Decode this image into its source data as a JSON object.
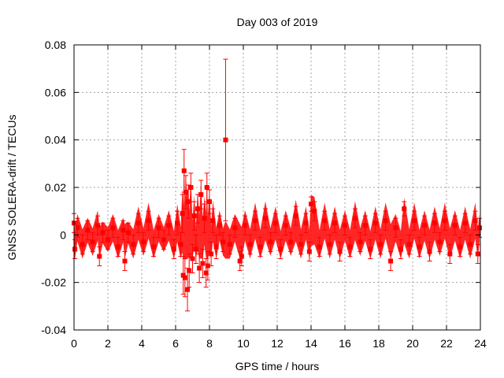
{
  "chart_data": {
    "type": "scatter",
    "title": "Day 003 of 2019",
    "xlabel": "GPS time / hours",
    "ylabel": "GNSS SOLERA-drift / TECUs",
    "xlim": [
      0,
      24
    ],
    "ylim": [
      -0.04,
      0.08
    ],
    "x_ticks": [
      0,
      2,
      4,
      6,
      8,
      10,
      12,
      14,
      16,
      18,
      20,
      22,
      24
    ],
    "x_tick_labels": [
      "0",
      "2",
      "4",
      "6",
      "8",
      "10",
      "12",
      "14",
      "16",
      "18",
      "20",
      "22",
      "24"
    ],
    "y_ticks": [
      -0.04,
      -0.02,
      0,
      0.02,
      0.04,
      0.06,
      0.08
    ],
    "y_tick_labels": [
      "-0.04",
      "-0.02",
      "0",
      "0.02",
      "0.04",
      "0.06",
      "0.08"
    ],
    "grid": true,
    "marker": "square",
    "error_bars": true,
    "color": "#ff0000",
    "series": [
      {
        "x": [
          0.0,
          0.05,
          0.2,
          0.5,
          0.8,
          1.1,
          1.4,
          1.5,
          1.7,
          2.0,
          2.3,
          2.6,
          2.9,
          3.0,
          3.2,
          3.5,
          3.8,
          4.1,
          4.4,
          4.7,
          5.0,
          5.3,
          5.6,
          5.9,
          6.1,
          6.3,
          6.4,
          6.45,
          6.5,
          6.55,
          6.6,
          6.7,
          6.75,
          6.8,
          6.9,
          7.0,
          7.1,
          7.2,
          7.3,
          7.4,
          7.5,
          7.6,
          7.7,
          7.8,
          7.85,
          7.9,
          8.0,
          8.1,
          8.2,
          8.4,
          8.6,
          8.8,
          8.95,
          9.2,
          9.5,
          9.8,
          9.9,
          10.1,
          10.4,
          10.7,
          11.0,
          11.3,
          11.6,
          11.9,
          12.2,
          12.5,
          12.8,
          13.1,
          13.4,
          13.7,
          13.9,
          14.0,
          14.2,
          14.5,
          14.8,
          15.1,
          15.4,
          15.7,
          16.0,
          16.3,
          16.6,
          16.9,
          17.2,
          17.5,
          17.8,
          18.1,
          18.4,
          18.7,
          19.0,
          19.3,
          19.5,
          19.8,
          20.1,
          20.4,
          20.7,
          21.0,
          21.3,
          21.6,
          21.9,
          22.2,
          22.5,
          22.8,
          23.1,
          23.4,
          23.7,
          23.85,
          23.95
        ],
        "y": [
          0.005,
          -0.006,
          0.003,
          -0.004,
          0.002,
          -0.003,
          0.004,
          -0.009,
          0.001,
          -0.002,
          0.003,
          -0.005,
          0.002,
          -0.011,
          0.001,
          -0.004,
          0.005,
          -0.003,
          0.006,
          -0.005,
          0.003,
          -0.002,
          0.004,
          -0.006,
          0.005,
          -0.004,
          0.009,
          -0.017,
          0.027,
          -0.018,
          0.018,
          -0.023,
          0.014,
          -0.015,
          0.02,
          -0.01,
          0.008,
          -0.006,
          0.011,
          -0.014,
          0.017,
          -0.012,
          0.007,
          -0.016,
          0.02,
          -0.013,
          0.014,
          -0.008,
          0.006,
          -0.005,
          0.004,
          -0.003,
          0.04,
          -0.004,
          0.003,
          -0.011,
          -0.009,
          0.004,
          -0.004,
          0.006,
          -0.005,
          0.007,
          -0.003,
          0.005,
          -0.006,
          0.004,
          -0.003,
          0.008,
          -0.004,
          0.005,
          -0.007,
          0.013,
          0.01,
          -0.005,
          0.006,
          -0.004,
          0.005,
          -0.007,
          0.004,
          -0.005,
          0.007,
          -0.003,
          0.004,
          -0.006,
          0.005,
          -0.004,
          0.006,
          -0.011,
          0.003,
          -0.006,
          0.011,
          -0.004,
          0.006,
          -0.005,
          0.004,
          -0.007,
          0.005,
          -0.003,
          0.006,
          -0.008,
          0.004,
          -0.005,
          0.005,
          -0.004,
          0.006,
          -0.008,
          0.003
        ],
        "y_err": [
          0.004,
          0.004,
          0.004,
          0.004,
          0.004,
          0.004,
          0.004,
          0.004,
          0.004,
          0.004,
          0.004,
          0.004,
          0.004,
          0.004,
          0.004,
          0.004,
          0.004,
          0.004,
          0.004,
          0.004,
          0.004,
          0.004,
          0.004,
          0.004,
          0.005,
          0.005,
          0.008,
          0.008,
          0.009,
          0.008,
          0.007,
          0.009,
          0.007,
          0.007,
          0.006,
          0.006,
          0.006,
          0.006,
          0.006,
          0.006,
          0.006,
          0.006,
          0.006,
          0.006,
          0.006,
          0.006,
          0.005,
          0.005,
          0.005,
          0.005,
          0.004,
          0.004,
          0.034,
          0.004,
          0.004,
          0.004,
          0.004,
          0.004,
          0.004,
          0.004,
          0.004,
          0.004,
          0.004,
          0.004,
          0.004,
          0.004,
          0.004,
          0.004,
          0.004,
          0.004,
          0.004,
          0.003,
          0.004,
          0.004,
          0.004,
          0.004,
          0.004,
          0.004,
          0.004,
          0.004,
          0.004,
          0.004,
          0.004,
          0.004,
          0.004,
          0.004,
          0.004,
          0.004,
          0.004,
          0.004,
          0.003,
          0.004,
          0.004,
          0.004,
          0.004,
          0.004,
          0.004,
          0.004,
          0.004,
          0.004,
          0.004,
          0.004,
          0.004,
          0.004,
          0.004,
          0.004,
          0.004
        ]
      }
    ]
  }
}
